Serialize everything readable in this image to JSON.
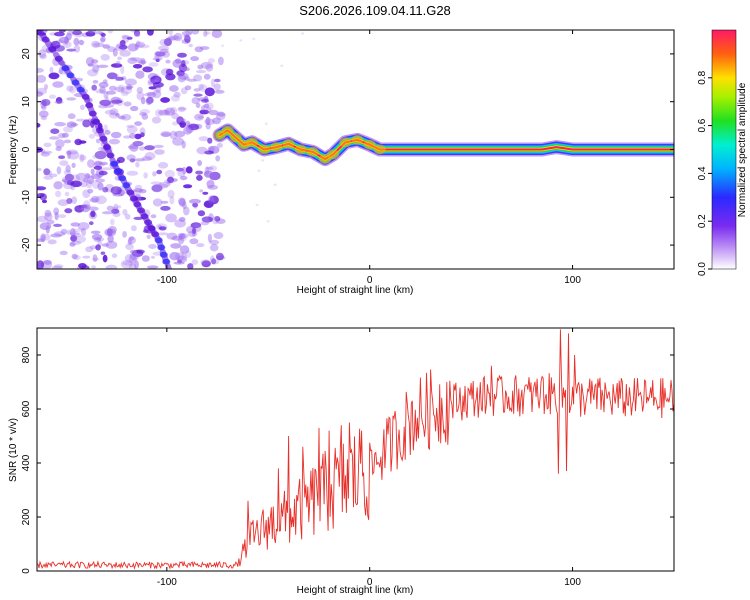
{
  "figure": {
    "title": "S206.2026.109.04.11.G28"
  },
  "colors": {
    "snr_line": "#e8302a",
    "spectro_noise": "#9d6cf0",
    "spectro_noise_dark": "#5a12d8",
    "axis": "#000000"
  },
  "chart_data": [
    {
      "type": "heatmap",
      "name": "spectrogram",
      "xlabel": "Height of straight line (km)",
      "ylabel": "Frequency (Hz)",
      "xlim": [
        -164,
        150
      ],
      "ylim": [
        -25,
        25
      ],
      "xticks": [
        -100,
        0,
        100
      ],
      "xtick_labels": [
        "-100",
        "0",
        "100"
      ],
      "yticks": [
        -20,
        -10,
        0,
        10,
        20
      ],
      "ytick_labels": [
        "-20",
        "-10",
        "0",
        "10",
        "20"
      ],
      "colorbar": {
        "label": "Normalized spectral amplitude",
        "range": [
          0,
          1
        ],
        "ticks": [
          0.0,
          0.2,
          0.4,
          0.6,
          0.8
        ],
        "tick_labels": [
          "0.0",
          "0.2",
          "0.4",
          "0.6",
          "0.8"
        ]
      },
      "noise_region_x": [
        -164,
        -73
      ],
      "diagonal_track": [
        [
          -163,
          25
        ],
        [
          -150,
          17
        ],
        [
          -140,
          11
        ],
        [
          -133,
          4
        ],
        [
          -126,
          -3
        ],
        [
          -118,
          -9
        ],
        [
          -111,
          -14
        ],
        [
          -104,
          -19
        ],
        [
          -99,
          -25
        ]
      ],
      "carrier_track": [
        [
          -74,
          3
        ],
        [
          -70,
          4
        ],
        [
          -66,
          2.5
        ],
        [
          -62,
          1
        ],
        [
          -58,
          1.5
        ],
        [
          -52,
          0
        ],
        [
          -46,
          0.5
        ],
        [
          -40,
          1.2
        ],
        [
          -34,
          0
        ],
        [
          -28,
          -0.5
        ],
        [
          -22,
          -2
        ],
        [
          -18,
          -1
        ],
        [
          -12,
          1.5
        ],
        [
          -6,
          2
        ],
        [
          0,
          1
        ],
        [
          5,
          0
        ],
        [
          20,
          0
        ],
        [
          60,
          0
        ],
        [
          85,
          0
        ],
        [
          92,
          0.5
        ],
        [
          100,
          0
        ],
        [
          105,
          0
        ],
        [
          150,
          0
        ]
      ],
      "carrier_amplitude": 0.95
    },
    {
      "type": "line",
      "name": "snr",
      "xlabel": "Height of straight line (km)",
      "ylabel": "SNR (10 * v/v)",
      "xlim": [
        -164,
        150
      ],
      "ylim": [
        0,
        900
      ],
      "xticks": [
        -100,
        0,
        100
      ],
      "xtick_labels": [
        "-100",
        "0",
        "100"
      ],
      "yticks": [
        0,
        200,
        400,
        600,
        800
      ],
      "ytick_labels": [
        "0",
        "200",
        "400",
        "600",
        "800"
      ],
      "series": [
        {
          "name": "SNR",
          "envelope_x": [
            -164,
            -65,
            -60,
            -50,
            -40,
            -30,
            -20,
            -10,
            0,
            10,
            20,
            30,
            40,
            50,
            60,
            70,
            80,
            90,
            95,
            100,
            110,
            120,
            130,
            140,
            150
          ],
          "envelope_y": [
            22,
            22,
            110,
            170,
            200,
            250,
            300,
            340,
            380,
            470,
            560,
            600,
            625,
            640,
            650,
            650,
            650,
            655,
            650,
            640,
            645,
            640,
            640,
            640,
            640
          ],
          "spikes": [
            [
              -60,
              260
            ],
            [
              -45,
              380
            ],
            [
              -40,
              500
            ],
            [
              -33,
              460
            ],
            [
              -25,
              530
            ],
            [
              -20,
              520
            ],
            [
              -14,
              540
            ],
            [
              -10,
              550
            ],
            [
              -4,
              520
            ],
            [
              60,
              760
            ],
            [
              65,
              720
            ],
            [
              85,
              720
            ],
            [
              94,
              895
            ],
            [
              98,
              880
            ],
            [
              101,
              800
            ],
            [
              93,
              360
            ],
            [
              97,
              370
            ]
          ]
        }
      ]
    }
  ]
}
